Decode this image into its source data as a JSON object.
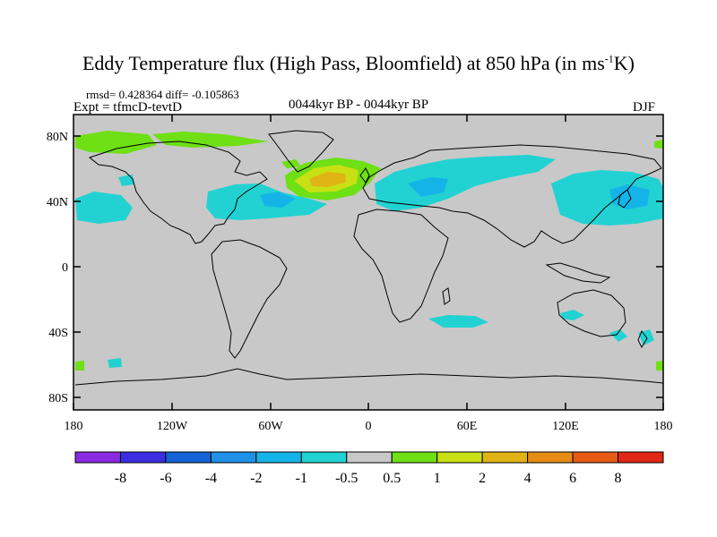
{
  "title_main": "Eddy Temperature flux (High Pass, Bloomfield) at 850 hPa (in ms",
  "title_sup": "-1",
  "title_end": "K)",
  "stats_line": "rmsd= 0.428364  diff= -0.105863",
  "experiment_label": "Expt = tfmcD-tevtD",
  "period_label": "0044kyr BP - 0044kyr BP",
  "season_label": "DJF",
  "lat_labels": [
    "80N",
    "40N",
    "0",
    "40S",
    "80S"
  ],
  "lon_labels": [
    "180",
    "120W",
    "60W",
    "0",
    "60E",
    "120E",
    "180"
  ],
  "colorbar": {
    "labels": [
      "-8",
      "-6",
      "-4",
      "-2",
      "-1",
      "-0.5",
      "0.5",
      "1",
      "2",
      "4",
      "6",
      "8"
    ],
    "colors": [
      "#8a2be2",
      "#3b2ee0",
      "#1464d8",
      "#1e90e6",
      "#14b4e8",
      "#22d2d2",
      "#c8c8c8",
      "#6ee014",
      "#c8e014",
      "#e0b414",
      "#e68c14",
      "#e65a14",
      "#e02814"
    ]
  },
  "map_colors": {
    "ocean": "#c8c8c8",
    "pos_low": "#6ee014",
    "pos_mid": "#c8e014",
    "pos_high": "#e0b414",
    "neg_low": "#22d2d2",
    "neg_mid": "#14b4e8"
  }
}
